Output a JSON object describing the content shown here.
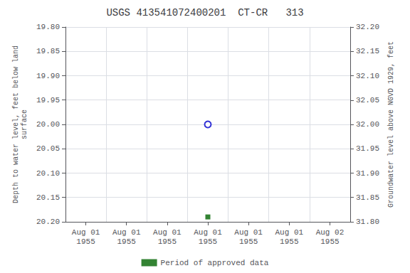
{
  "chart_data": {
    "type": "scatter",
    "title": "USGS 413541072400201  CT-CR   313",
    "ylabel": "Depth to water level, feet below land\nsurface",
    "y2label": "Groundwater level above NGVD 1929, feet",
    "categories": [
      "Aug 01\n1955",
      "Aug 01\n1955",
      "Aug 01\n1955",
      "Aug 01\n1955",
      "Aug 01\n1955",
      "Aug 01\n1955",
      "Aug 02\n1955"
    ],
    "series": [
      {
        "color": "#0000cc",
        "marker": "open_circle",
        "values": [
          null,
          null,
          null,
          20.0,
          null,
          null,
          null
        ]
      },
      {
        "name": "Period of approved data",
        "color": "#006400",
        "marker": "square",
        "values": [
          null,
          null,
          null,
          20.19,
          null,
          null,
          null
        ]
      }
    ],
    "ylim": [
      20.2,
      19.8
    ],
    "yticks": [
      {
        "value": 19.8,
        "label": "19.80"
      },
      {
        "value": 19.85,
        "label": "19.85"
      },
      {
        "value": 19.9,
        "label": "19.90"
      },
      {
        "value": 19.95,
        "label": "19.95"
      },
      {
        "value": 20.0,
        "label": "20.00"
      },
      {
        "value": 20.05,
        "label": "20.05"
      },
      {
        "value": 20.1,
        "label": "20.10"
      },
      {
        "value": 20.15,
        "label": "20.15"
      },
      {
        "value": 20.2,
        "label": "20.20"
      }
    ],
    "y2lim": [
      31.8,
      32.2
    ],
    "y2ticks": [
      {
        "value": 31.8,
        "label": "31.80"
      },
      {
        "value": 31.85,
        "label": "31.85"
      },
      {
        "value": 31.9,
        "label": "31.90"
      },
      {
        "value": 31.95,
        "label": "31.95"
      },
      {
        "value": 32.0,
        "label": "32.00"
      },
      {
        "value": 32.05,
        "label": "32.05"
      },
      {
        "value": 32.1,
        "label": "32.10"
      },
      {
        "value": 32.15,
        "label": "32.15"
      },
      {
        "value": 32.2,
        "label": "32.20"
      }
    ],
    "grid": true,
    "legend": "bottom"
  }
}
